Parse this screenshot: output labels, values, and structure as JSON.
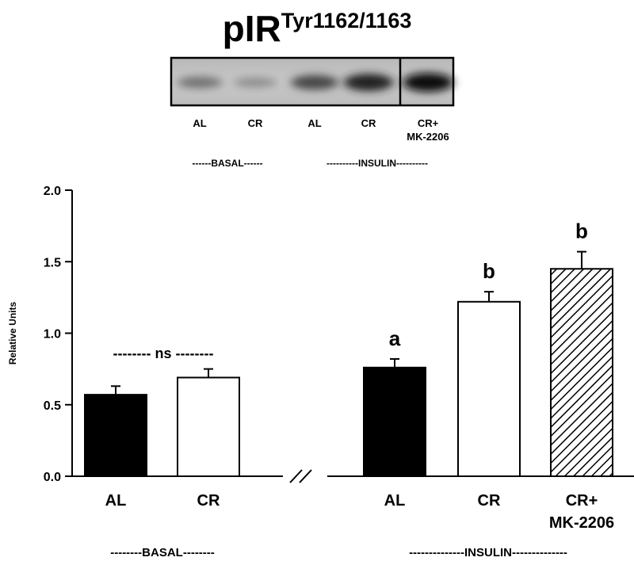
{
  "title": {
    "main": "pIR",
    "superscript": "Tyr1162/1163"
  },
  "blot": {
    "lanes": [
      {
        "line1": "AL",
        "line2": "",
        "intensity": 0.35
      },
      {
        "line1": "CR",
        "line2": "",
        "intensity": 0.18
      },
      {
        "line1": "AL",
        "line2": "",
        "intensity": 0.62
      },
      {
        "line1": "CR",
        "line2": "",
        "intensity": 0.85
      },
      {
        "line1": "CR+",
        "line2": "MK-2206",
        "intensity": 1.0
      }
    ],
    "group_labels": [
      "------BASAL------",
      "----------INSULIN----------"
    ]
  },
  "chart_data": {
    "type": "bar",
    "categories": [
      "AL",
      "CR",
      "AL",
      "CR",
      "CR+ MK-2206"
    ],
    "category_lines": [
      [
        "AL"
      ],
      [
        "CR"
      ],
      [
        "AL"
      ],
      [
        "CR"
      ],
      [
        "CR+",
        "MK-2206"
      ]
    ],
    "groups": [
      "--------BASAL--------",
      "--------------INSULIN--------------"
    ],
    "values": [
      0.57,
      0.69,
      0.76,
      1.22,
      1.45
    ],
    "errors": [
      0.06,
      0.06,
      0.06,
      0.07,
      0.12
    ],
    "fills": [
      "black",
      "white",
      "black",
      "white",
      "hatched"
    ],
    "annotations": [
      "",
      "",
      "a",
      "b",
      "b"
    ],
    "ns_label": "-------- ns --------",
    "ylabel": "Relative Units",
    "ylim": [
      0,
      2.0
    ],
    "yticks": [
      "0.0",
      "0.5",
      "1.0",
      "1.5",
      "2.0"
    ],
    "axis_break": true
  }
}
